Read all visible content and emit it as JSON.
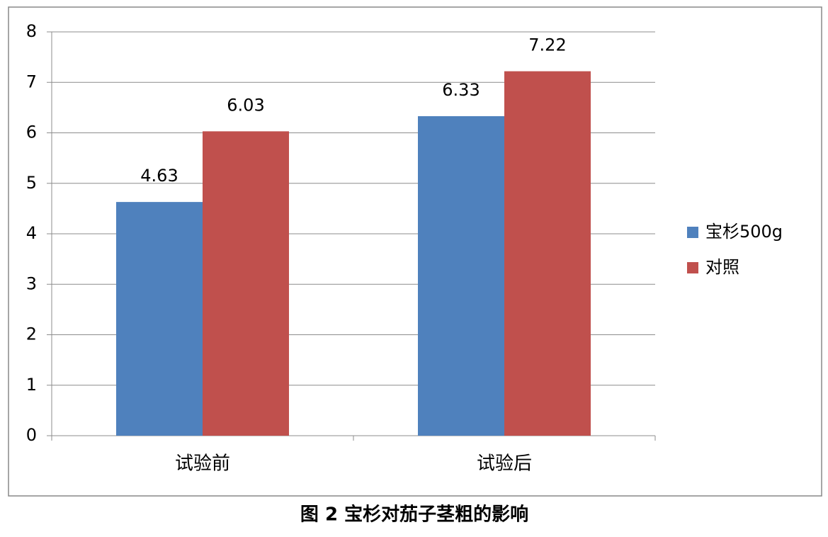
{
  "chart_data": {
    "type": "bar",
    "caption": "图 2  宝杉对茄子茎粗的影响",
    "categories": [
      "试验前",
      "试验后"
    ],
    "series": [
      {
        "name": "宝杉500g",
        "color": "#4f81bd",
        "values": [
          4.63,
          6.33
        ]
      },
      {
        "name": "对照",
        "color": "#c0504d",
        "values": [
          6.03,
          7.22
        ]
      }
    ],
    "ylim": [
      0,
      8
    ],
    "yticks": [
      0,
      1,
      2,
      3,
      4,
      5,
      6,
      7,
      8
    ],
    "grid": true,
    "legend": "right"
  }
}
